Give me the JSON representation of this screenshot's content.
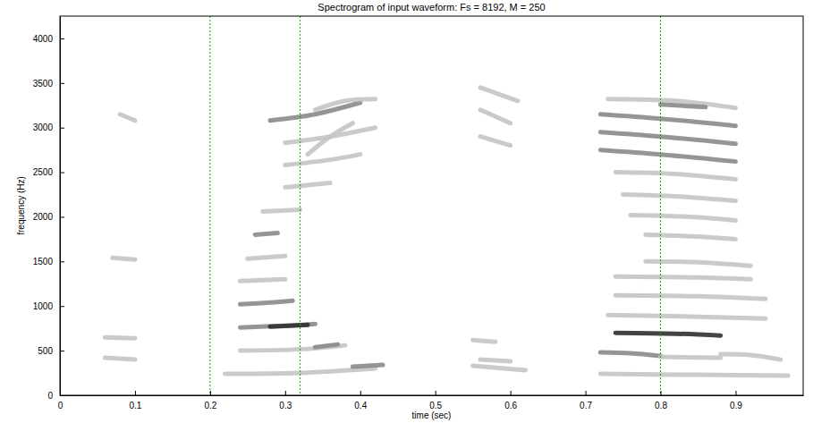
{
  "chart_data": {
    "type": "spectrogram",
    "title": "Spectrogram of input waveform:  Fs = 8192, M = 250",
    "x_label": "time (sec)",
    "y_label": "frequency (Hz)",
    "xlim": [
      0,
      0.99
    ],
    "ylim": [
      0,
      4250
    ],
    "xticks": [
      0,
      0.1,
      0.2,
      0.3,
      0.4,
      0.5,
      0.6,
      0.7,
      0.8,
      0.9
    ],
    "yticks": [
      0,
      500,
      1000,
      1500,
      2000,
      2500,
      3000,
      3500,
      4000
    ],
    "vlines": [
      0.2,
      0.32,
      0.8
    ],
    "streaks": [
      {
        "x": [
          0.06,
          0.1
        ],
        "y": [
          650,
          640
        ],
        "level": 1
      },
      {
        "x": [
          0.06,
          0.1
        ],
        "y": [
          420,
          400
        ],
        "level": 1
      },
      {
        "x": [
          0.07,
          0.1
        ],
        "y": [
          1540,
          1520
        ],
        "level": 1
      },
      {
        "x": [
          0.08,
          0.1
        ],
        "y": [
          3150,
          3080
        ],
        "level": 1
      },
      {
        "x": [
          0.22,
          0.32,
          0.42
        ],
        "y": [
          240,
          250,
          300
        ],
        "level": 1
      },
      {
        "x": [
          0.24,
          0.33,
          0.38
        ],
        "y": [
          500,
          520,
          560
        ],
        "level": 1
      },
      {
        "x": [
          0.34,
          0.37
        ],
        "y": [
          540,
          570
        ],
        "level": 2
      },
      {
        "x": [
          0.39,
          0.43
        ],
        "y": [
          320,
          340
        ],
        "level": 2
      },
      {
        "x": [
          0.24,
          0.3,
          0.34
        ],
        "y": [
          760,
          780,
          800
        ],
        "level": 2
      },
      {
        "x": [
          0.28,
          0.33
        ],
        "y": [
          770,
          790
        ],
        "level": 3
      },
      {
        "x": [
          0.24,
          0.28,
          0.31
        ],
        "y": [
          1020,
          1040,
          1060
        ],
        "level": 2
      },
      {
        "x": [
          0.24,
          0.3
        ],
        "y": [
          1280,
          1300
        ],
        "level": 1
      },
      {
        "x": [
          0.25,
          0.3
        ],
        "y": [
          1530,
          1560
        ],
        "level": 1
      },
      {
        "x": [
          0.26,
          0.29
        ],
        "y": [
          1800,
          1820
        ],
        "level": 2
      },
      {
        "x": [
          0.27,
          0.32
        ],
        "y": [
          2060,
          2080
        ],
        "level": 1
      },
      {
        "x": [
          0.3,
          0.36
        ],
        "y": [
          2330,
          2380
        ],
        "level": 1
      },
      {
        "x": [
          0.3,
          0.36,
          0.4
        ],
        "y": [
          2580,
          2640,
          2700
        ],
        "level": 1
      },
      {
        "x": [
          0.3,
          0.36,
          0.42
        ],
        "y": [
          2830,
          2900,
          3000
        ],
        "level": 1
      },
      {
        "x": [
          0.33,
          0.36,
          0.39
        ],
        "y": [
          2700,
          2900,
          3050
        ],
        "level": 1
      },
      {
        "x": [
          0.28,
          0.34,
          0.4
        ],
        "y": [
          3080,
          3150,
          3280
        ],
        "level": 2
      },
      {
        "x": [
          0.34,
          0.38,
          0.42
        ],
        "y": [
          3200,
          3300,
          3320
        ],
        "level": 1
      },
      {
        "x": [
          0.55,
          0.62
        ],
        "y": [
          330,
          280
        ],
        "level": 1
      },
      {
        "x": [
          0.56,
          0.6
        ],
        "y": [
          400,
          380
        ],
        "level": 1
      },
      {
        "x": [
          0.55,
          0.58
        ],
        "y": [
          620,
          600
        ],
        "level": 1
      },
      {
        "x": [
          0.56,
          0.6
        ],
        "y": [
          2900,
          2800
        ],
        "level": 1
      },
      {
        "x": [
          0.56,
          0.6
        ],
        "y": [
          3200,
          3050
        ],
        "level": 1
      },
      {
        "x": [
          0.56,
          0.61
        ],
        "y": [
          3450,
          3300
        ],
        "level": 1
      },
      {
        "x": [
          0.73,
          0.82,
          0.9
        ],
        "y": [
          3320,
          3300,
          3220
        ],
        "level": 1
      },
      {
        "x": [
          0.8,
          0.86
        ],
        "y": [
          3260,
          3230
        ],
        "level": 2
      },
      {
        "x": [
          0.72,
          0.8,
          0.9
        ],
        "y": [
          3150,
          3100,
          3020
        ],
        "level": 2
      },
      {
        "x": [
          0.72,
          0.8,
          0.9
        ],
        "y": [
          2950,
          2900,
          2820
        ],
        "level": 2
      },
      {
        "x": [
          0.72,
          0.8,
          0.9
        ],
        "y": [
          2750,
          2700,
          2620
        ],
        "level": 2
      },
      {
        "x": [
          0.74,
          0.82,
          0.9
        ],
        "y": [
          2500,
          2480,
          2420
        ],
        "level": 1
      },
      {
        "x": [
          0.75,
          0.82,
          0.9
        ],
        "y": [
          2250,
          2230,
          2180
        ],
        "level": 1
      },
      {
        "x": [
          0.76,
          0.84,
          0.9
        ],
        "y": [
          2020,
          2000,
          1960
        ],
        "level": 1
      },
      {
        "x": [
          0.78,
          0.85,
          0.9
        ],
        "y": [
          1800,
          1780,
          1750
        ],
        "level": 1
      },
      {
        "x": [
          0.78,
          0.85,
          0.92
        ],
        "y": [
          1500,
          1490,
          1450
        ],
        "level": 1
      },
      {
        "x": [
          0.74,
          0.85,
          0.92
        ],
        "y": [
          1330,
          1320,
          1300
        ],
        "level": 1
      },
      {
        "x": [
          0.74,
          0.85,
          0.94
        ],
        "y": [
          1120,
          1110,
          1080
        ],
        "level": 1
      },
      {
        "x": [
          0.73,
          0.85,
          0.94
        ],
        "y": [
          900,
          880,
          860
        ],
        "level": 1
      },
      {
        "x": [
          0.74,
          0.82,
          0.88
        ],
        "y": [
          700,
          690,
          670
        ],
        "level": 3
      },
      {
        "x": [
          0.72,
          0.76,
          0.8
        ],
        "y": [
          480,
          470,
          440
        ],
        "level": 2
      },
      {
        "x": [
          0.8,
          0.88
        ],
        "y": [
          430,
          420
        ],
        "level": 1
      },
      {
        "x": [
          0.88,
          0.92,
          0.96
        ],
        "y": [
          460,
          450,
          400
        ],
        "level": 1
      },
      {
        "x": [
          0.72,
          0.85,
          0.97
        ],
        "y": [
          240,
          230,
          220
        ],
        "level": 1
      }
    ]
  }
}
